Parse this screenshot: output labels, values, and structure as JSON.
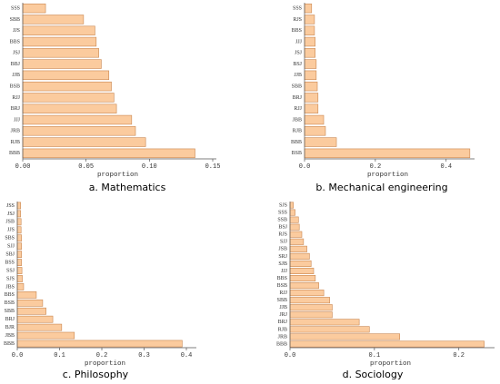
{
  "chart_data": [
    {
      "type": "barh",
      "title": "a. Mathematics",
      "xlabel": "proportion",
      "color": "#fbcb9e",
      "edgecolor": "#c9864f",
      "categories": [
        "SSS",
        "SBB",
        "JJS",
        "BBS",
        "JSJ",
        "BBJ",
        "JJB",
        "BSB",
        "RJJ",
        "BRJ",
        "JJJ",
        "JRB",
        "RJB",
        "BBB"
      ],
      "values": [
        0.018,
        0.048,
        0.057,
        0.058,
        0.06,
        0.062,
        0.068,
        0.07,
        0.072,
        0.074,
        0.086,
        0.089,
        0.097,
        0.136
      ],
      "xlim": [
        0,
        0.15
      ],
      "xticks": [
        {
          "value": 0,
          "label": "0.00"
        },
        {
          "value": 0.05,
          "label": "0.05"
        },
        {
          "value": 0.1,
          "label": "0.10"
        },
        {
          "value": 0.15,
          "label": "0.15"
        }
      ]
    },
    {
      "type": "barh",
      "title": "b. Mechanical engineering",
      "xlabel": "proportion",
      "color": "#fbcb9e",
      "edgecolor": "#c9864f",
      "categories": [
        "SSS",
        "RJS",
        "BBS",
        "JJJ",
        "JSJ",
        "BSJ",
        "JJB",
        "SBB",
        "BRJ",
        "RJJ",
        "JBB",
        "RJB",
        "BBB",
        "BSB"
      ],
      "values": [
        0.02,
        0.028,
        0.028,
        0.03,
        0.03,
        0.033,
        0.033,
        0.036,
        0.038,
        0.038,
        0.054,
        0.059,
        0.09,
        0.467
      ],
      "xlim": [
        0,
        0.47
      ],
      "xticks": [
        {
          "value": 0,
          "label": "0.0"
        },
        0.2,
        0.4
      ]
    },
    {
      "type": "barh",
      "title": "c. Philosophy",
      "xlabel": "proportion",
      "color": "#fbcb9e",
      "edgecolor": "#c9864f",
      "categories": [
        "JSS",
        "JSJ",
        "JSB",
        "JJS",
        "SBS",
        "SJJ",
        "SBJ",
        "BSS",
        "SSJ",
        "SJS",
        "JBS",
        "BBS",
        "BSB",
        "SBB",
        "BRJ",
        "BJR",
        "JBB",
        "BBB"
      ],
      "values": [
        0.008,
        0.008,
        0.009,
        0.009,
        0.01,
        0.01,
        0.01,
        0.01,
        0.011,
        0.012,
        0.015,
        0.045,
        0.06,
        0.068,
        0.084,
        0.105,
        0.135,
        0.39
      ],
      "xlim": [
        0,
        0.415
      ],
      "xticks": [
        {
          "value": 0,
          "label": "0.0"
        },
        0.1,
        0.2,
        0.3,
        0.4
      ]
    },
    {
      "type": "barh",
      "title": "d. Sociology",
      "xlabel": "proportion",
      "color": "#fbcb9e",
      "edgecolor": "#c9864f",
      "categories": [
        "SJS",
        "SSS",
        "SSB",
        "BSJ",
        "RJS",
        "SJJ",
        "JSB",
        "SRJ",
        "SJB",
        "JJJ",
        "BBS",
        "BSB",
        "RJJ",
        "SBB",
        "JJB",
        "JRJ",
        "BRJ",
        "RJB",
        "JRB",
        "BBB"
      ],
      "values": [
        0.004,
        0.006,
        0.01,
        0.011,
        0.014,
        0.016,
        0.02,
        0.023,
        0.025,
        0.028,
        0.03,
        0.034,
        0.04,
        0.047,
        0.05,
        0.05,
        0.082,
        0.094,
        0.13,
        0.23
      ],
      "xlim": [
        0,
        0.238
      ],
      "xticks": [
        {
          "value": 0,
          "label": "0.0"
        },
        0.1,
        0.2
      ]
    }
  ]
}
